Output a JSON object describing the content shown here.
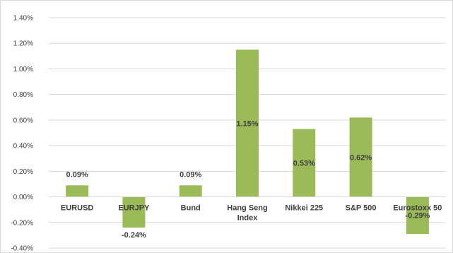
{
  "chart_data": {
    "type": "bar",
    "categories": [
      [
        "EURUSD"
      ],
      [
        "EURJPY"
      ],
      [
        "Bund"
      ],
      [
        "Hang Seng",
        "Index"
      ],
      [
        "Nikkei 225"
      ],
      [
        "S&P 500"
      ],
      [
        "Eurostoxx 50"
      ]
    ],
    "values": [
      0.09,
      -0.24,
      0.09,
      1.15,
      0.53,
      0.62,
      -0.29
    ],
    "data_labels": [
      "0.09%",
      "-0.24%",
      "0.09%",
      "1.15%",
      "0.53%",
      "0.62%",
      "-0.29%"
    ],
    "y_ticks": [
      {
        "value": 1.4,
        "label": "1.40%"
      },
      {
        "value": 1.2,
        "label": "1.20%"
      },
      {
        "value": 1.0,
        "label": "1.00%"
      },
      {
        "value": 0.8,
        "label": "0.80%"
      },
      {
        "value": 0.6,
        "label": "0.60%"
      },
      {
        "value": 0.4,
        "label": "0.40%"
      },
      {
        "value": 0.2,
        "label": "0.20%"
      },
      {
        "value": 0.0,
        "label": "0.00%"
      },
      {
        "value": -0.2,
        "label": "-0.20%"
      },
      {
        "value": -0.4,
        "label": "-0.40%"
      }
    ],
    "ylim": [
      -0.4,
      1.4
    ],
    "grid": true,
    "colors": {
      "bar": "#9bbb59",
      "grid": "#d9d9d9",
      "text": "#404040"
    }
  }
}
